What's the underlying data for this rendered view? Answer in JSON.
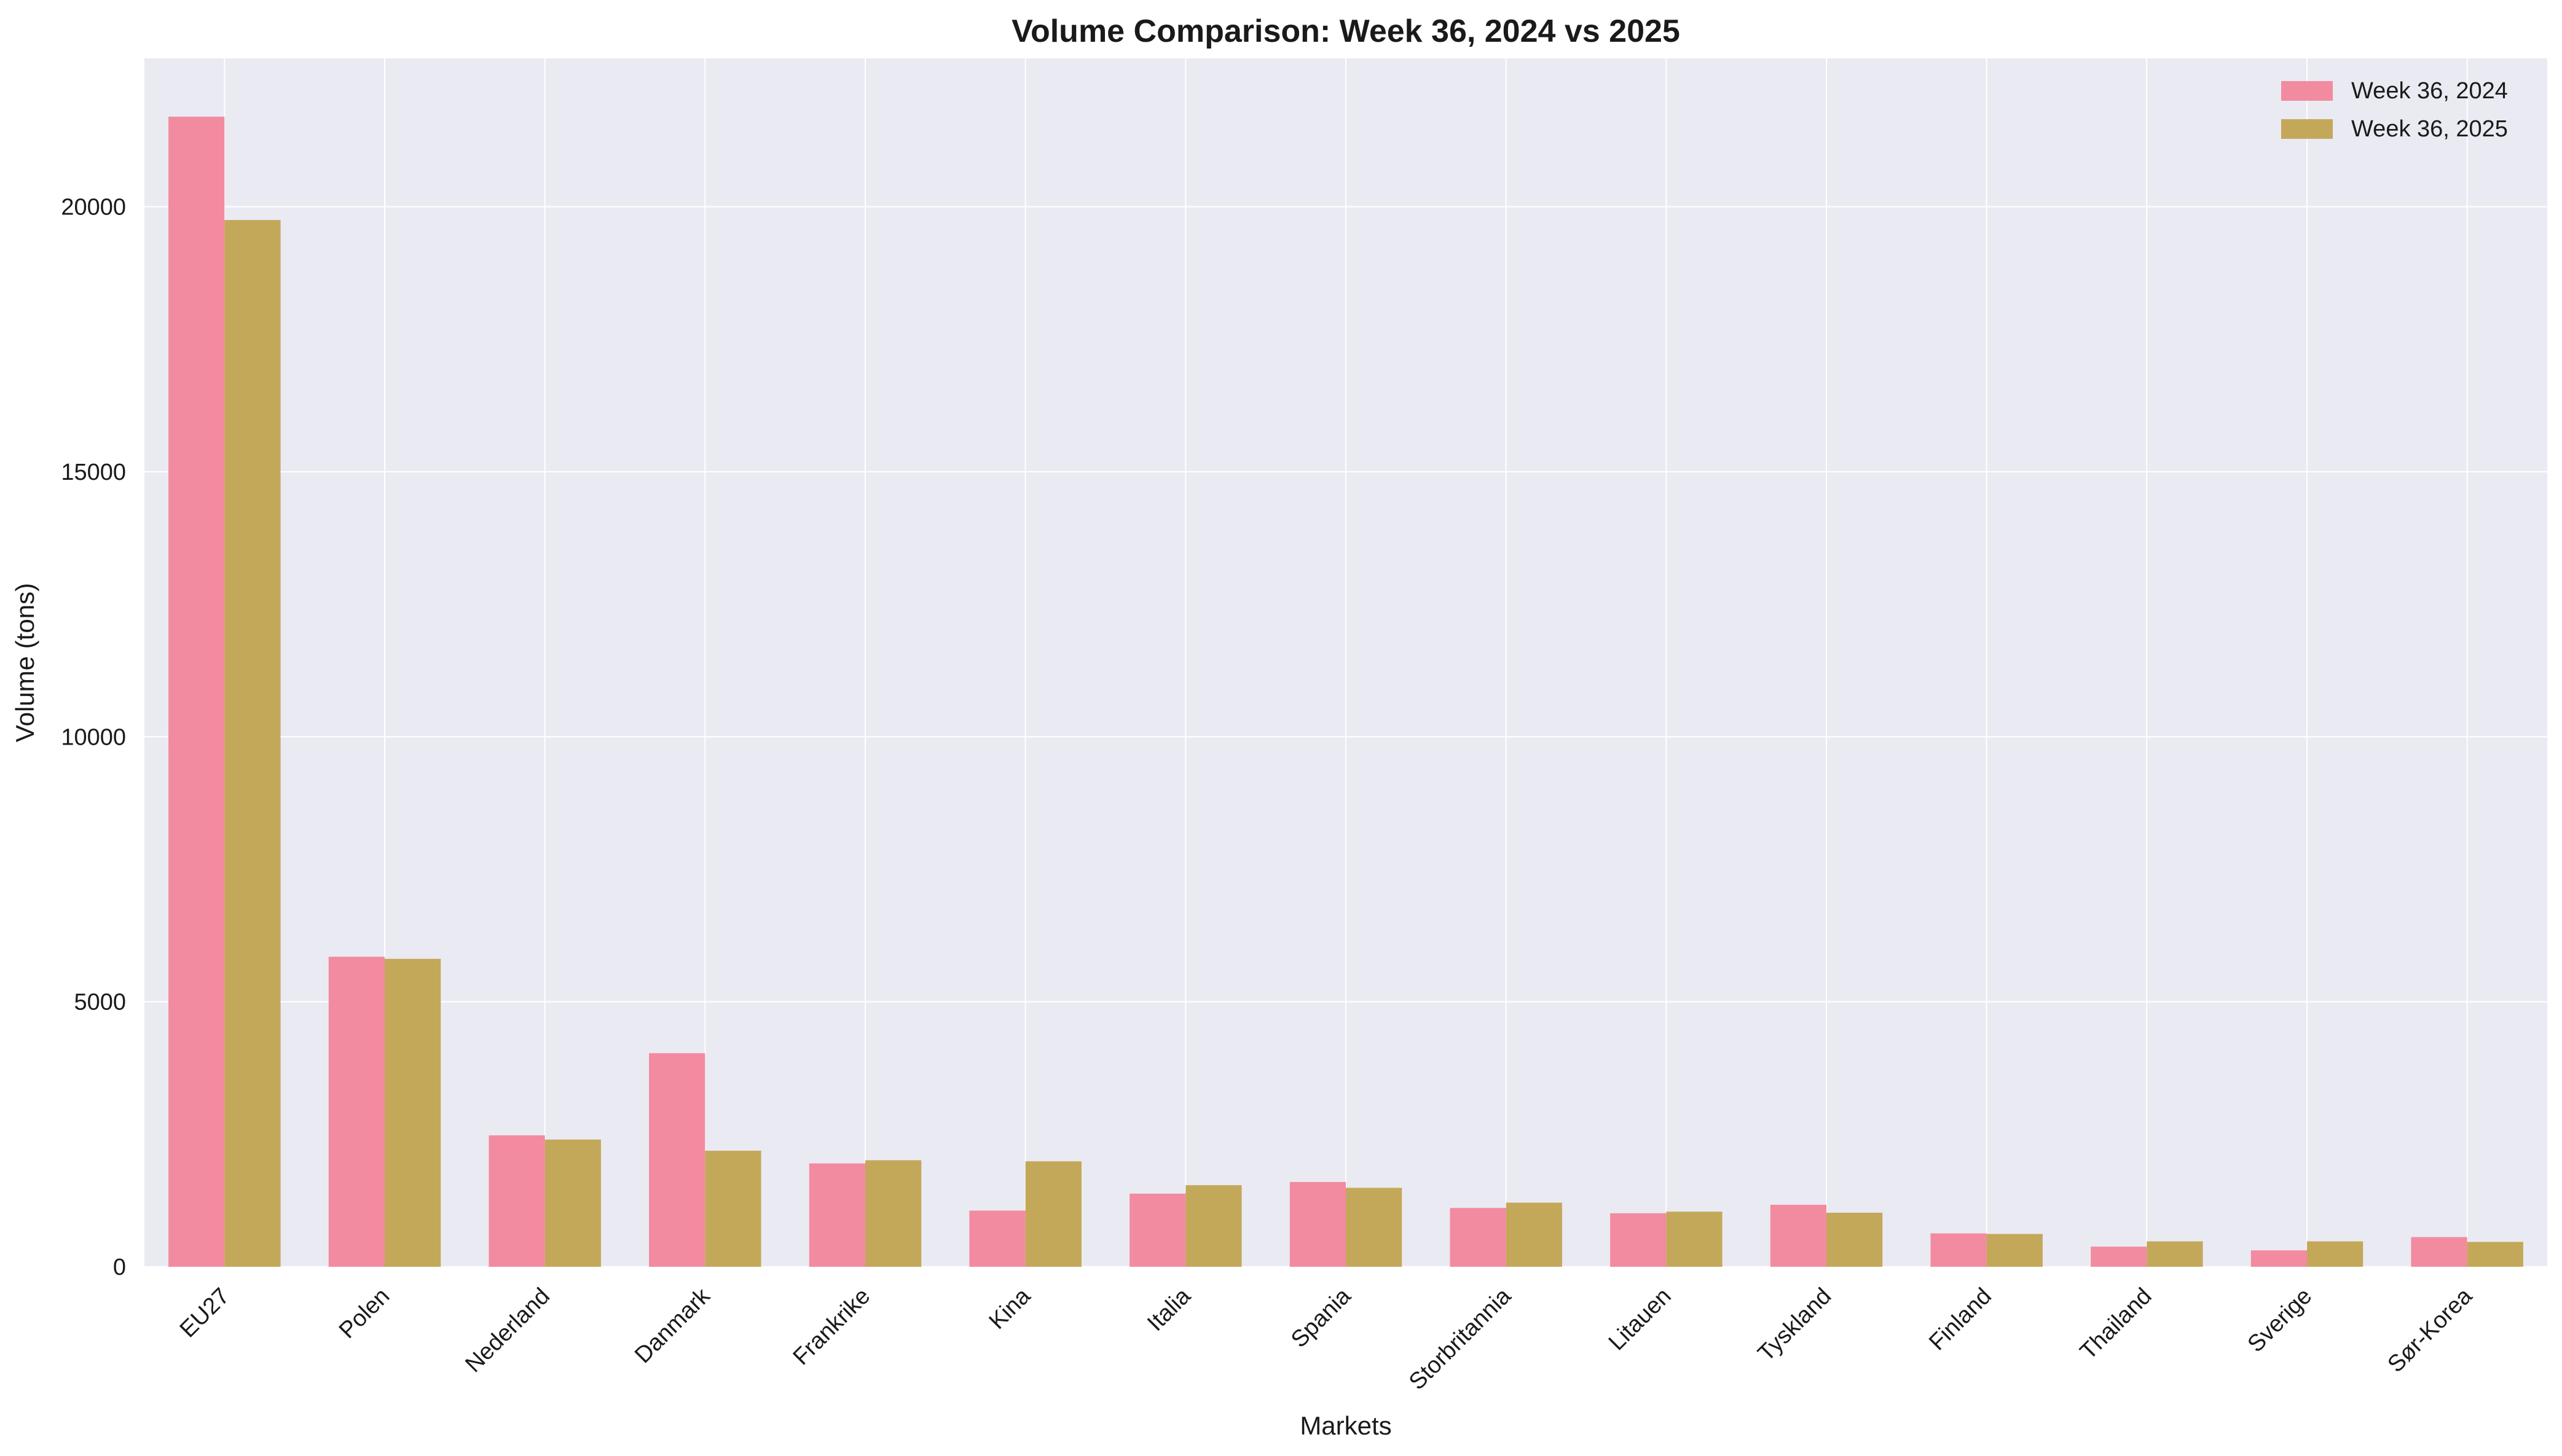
{
  "chart_data": {
    "type": "bar",
    "title": "Volume Comparison: Week 36, 2024 vs 2025",
    "xlabel": "Markets",
    "ylabel": "Volume (tons)",
    "ylim": [
      0,
      22800
    ],
    "yticks": [
      0,
      5000,
      10000,
      15000,
      20000
    ],
    "grid": true,
    "legend_position": "top-right",
    "categories": [
      "EU27",
      "Polen",
      "Nederland",
      "Danmark",
      "Frankrike",
      "Kina",
      "Italia",
      "Spania",
      "Storbritannia",
      "Litauen",
      "Tyskland",
      "Finland",
      "Thailand",
      "Sverige",
      "Sør-Korea"
    ],
    "series": [
      {
        "name": "Week 36, 2024",
        "color": "#f28ba0",
        "values": [
          21700,
          5850,
          2480,
          4030,
          1950,
          1060,
          1380,
          1600,
          1110,
          1010,
          1170,
          630,
          380,
          310,
          560
        ]
      },
      {
        "name": "Week 36, 2025",
        "color": "#c4a85a",
        "values": [
          19750,
          5810,
          2400,
          2190,
          2010,
          1990,
          1540,
          1490,
          1210,
          1040,
          1020,
          620,
          480,
          480,
          470
        ]
      }
    ],
    "colors": {
      "plot_background": "#eaeaf2",
      "grid": "#ffffff"
    }
  }
}
